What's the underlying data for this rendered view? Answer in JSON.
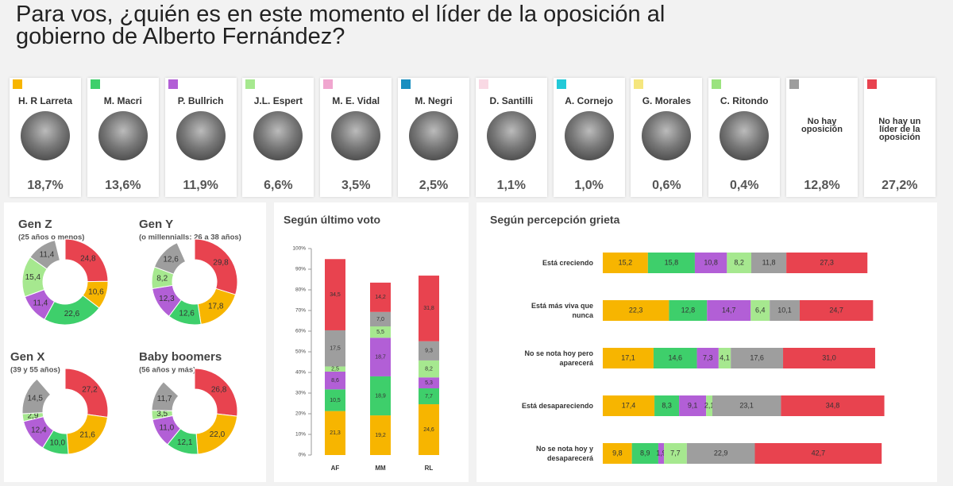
{
  "chart_data": [
    {
      "type": "candidates",
      "title": "Para vos, ¿quién es en este momento el líder de la oposición al gobierno de Alberto Fernández?",
      "categories": [
        "H. R Larreta",
        "M. Macri",
        "P. Bullrich",
        "J.L. Espert",
        "M. E. Vidal",
        "M. Negri",
        "D. Santilli",
        "A. Cornejo",
        "G. Morales",
        "C. Ritondo",
        "No hay oposición",
        "No hay un líder de la oposición"
      ],
      "values": [
        18.7,
        13.6,
        11.9,
        6.6,
        3.5,
        2.5,
        1.1,
        1.0,
        0.6,
        0.4,
        12.8,
        27.2
      ],
      "value_labels": [
        "18,7%",
        "13,6%",
        "11,9%",
        "6,6%",
        "3,5%",
        "2,5%",
        "1,1%",
        "1,0%",
        "0,6%",
        "0,4%",
        "12,8%",
        "27,2%"
      ],
      "colors": [
        "#f7b500",
        "#3ecf6b",
        "#b25fd6",
        "#a6e88f",
        "#f0a6cf",
        "#1a8fc0",
        "#f9d9e4",
        "#22c9d8",
        "#f5e67e",
        "#9be37f",
        "#9e9e9e",
        "#e8434f"
      ]
    },
    {
      "type": "donut",
      "title": "Gen Z",
      "subtitle": "(25 años o menos)",
      "values": [
        24.8,
        10.6,
        22.6,
        11.4,
        15.4,
        11.4
      ],
      "value_labels": [
        "24,8",
        "10,6",
        "22,6",
        "11,4",
        "15,4",
        "11,4"
      ],
      "colors": [
        "#e8434f",
        "#f7b500",
        "#3ecf6b",
        "#b25fd6",
        "#a6e88f",
        "#9e9e9e"
      ]
    },
    {
      "type": "donut",
      "title": "Gen Y",
      "subtitle": "(o millennialls: 26 a 38 años)",
      "values": [
        29.8,
        17.8,
        12.6,
        12.3,
        8.2,
        12.6
      ],
      "value_labels": [
        "29,8",
        "17,8",
        "12,6",
        "12,3",
        "8,2",
        "12,6"
      ],
      "colors": [
        "#e8434f",
        "#f7b500",
        "#3ecf6b",
        "#b25fd6",
        "#a6e88f",
        "#9e9e9e"
      ]
    },
    {
      "type": "donut",
      "title": "Gen X",
      "subtitle": "(39 y 55 años)",
      "values": [
        27.2,
        21.6,
        10.0,
        12.4,
        2.9,
        14.5
      ],
      "value_labels": [
        "27,2",
        "21,6",
        "10,0",
        "12,4",
        "2,9",
        "14,5"
      ],
      "colors": [
        "#e8434f",
        "#f7b500",
        "#3ecf6b",
        "#b25fd6",
        "#a6e88f",
        "#9e9e9e"
      ]
    },
    {
      "type": "donut",
      "title": "Baby boomers",
      "subtitle": "(56 años y más)",
      "values": [
        26.8,
        22.0,
        12.1,
        11.0,
        3.5,
        11.7
      ],
      "value_labels": [
        "26,8",
        "22,0",
        "12,1",
        "11,0",
        "3,5",
        "11,7"
      ],
      "colors": [
        "#e8434f",
        "#f7b500",
        "#3ecf6b",
        "#b25fd6",
        "#a6e88f",
        "#9e9e9e"
      ]
    },
    {
      "type": "stacked-bar",
      "title": "Según último voto",
      "categories": [
        "AF",
        "MM",
        "RL"
      ],
      "series": [
        {
          "color": "#f7b500",
          "values": [
            21.3,
            19.2,
            24.6
          ],
          "value_labels": [
            "21,3",
            "19,2",
            "24,6"
          ]
        },
        {
          "color": "#3ecf6b",
          "values": [
            10.5,
            18.9,
            7.7
          ],
          "value_labels": [
            "10,5",
            "18,9",
            "7,7"
          ]
        },
        {
          "color": "#b25fd6",
          "values": [
            8.6,
            18.7,
            5.3
          ],
          "value_labels": [
            "8,6",
            "18,7",
            "5,3"
          ]
        },
        {
          "color": "#a6e88f",
          "values": [
            2.5,
            5.5,
            8.2
          ],
          "value_labels": [
            "2,5",
            "5,5",
            "8,2"
          ]
        },
        {
          "color": "#9e9e9e",
          "values": [
            17.5,
            7.0,
            9.3
          ],
          "value_labels": [
            "17,5",
            "7,0",
            "9,3"
          ]
        },
        {
          "color": "#e8434f",
          "values": [
            34.5,
            14.2,
            31.8
          ],
          "value_labels": [
            "34,5",
            "14,2",
            "31,8"
          ]
        }
      ],
      "ylim": [
        0,
        100
      ],
      "yticks": [
        {
          "value": 0,
          "label": "0%"
        },
        {
          "value": 10,
          "label": "10%"
        },
        {
          "value": 20,
          "label": "20%"
        },
        {
          "value": 30,
          "label": "30%"
        },
        {
          "value": 40,
          "label": "40%"
        },
        {
          "value": 50,
          "label": "50%"
        },
        {
          "value": 60,
          "label": "60%"
        },
        {
          "value": 70,
          "label": "70%"
        },
        {
          "value": 80,
          "label": "80%"
        },
        {
          "value": 90,
          "label": "90%"
        },
        {
          "value": 100,
          "label": "100%"
        }
      ]
    },
    {
      "type": "stacked-barh",
      "title": "Según percepción grieta",
      "categories": [
        "Está creciendo",
        "Está más viva que nunca",
        "No se nota hoy pero aparecerá",
        "Está desapareciendo",
        "No se nota hoy y desaparecerá"
      ],
      "series": [
        {
          "color": "#f7b500",
          "values": [
            15.2,
            22.3,
            17.1,
            17.4,
            9.8
          ],
          "value_labels": [
            "15,2",
            "22,3",
            "17,1",
            "17,4",
            "9,8"
          ]
        },
        {
          "color": "#3ecf6b",
          "values": [
            15.8,
            12.8,
            14.6,
            8.3,
            8.9
          ],
          "value_labels": [
            "15,8",
            "12,8",
            "14,6",
            "8,3",
            "8,9"
          ]
        },
        {
          "color": "#b25fd6",
          "values": [
            10.8,
            14.7,
            7.3,
            9.1,
            1.9
          ],
          "value_labels": [
            "10,8",
            "14,7",
            "7,3",
            "9,1",
            "1,9"
          ]
        },
        {
          "color": "#a6e88f",
          "values": [
            8.2,
            6.4,
            4.1,
            2.1,
            7.7
          ],
          "value_labels": [
            "8,2",
            "6,4",
            "4,1",
            "2,1",
            "7,7"
          ]
        },
        {
          "color": "#9e9e9e",
          "values": [
            11.8,
            10.1,
            17.6,
            23.1,
            22.9
          ],
          "value_labels": [
            "11,8",
            "10,1",
            "17,6",
            "23,1",
            "22,9"
          ]
        },
        {
          "color": "#e8434f",
          "values": [
            27.3,
            24.7,
            31.0,
            34.8,
            42.7
          ],
          "value_labels": [
            "27,3",
            "24,7",
            "31,0",
            "34,8",
            "42,7"
          ]
        }
      ],
      "xlim": [
        0,
        100
      ]
    }
  ]
}
